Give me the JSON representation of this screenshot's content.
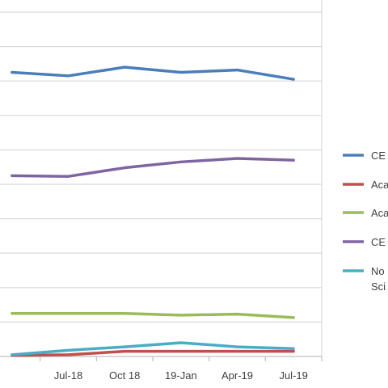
{
  "chart_data": {
    "type": "line",
    "title": "",
    "xlabel": "",
    "ylabel": "",
    "categories": [
      "",
      "Jul-18",
      "Oct 18",
      "19-Jan",
      "Apr-19",
      "Jul-19"
    ],
    "ylim": [
      0,
      100
    ],
    "grid": true,
    "legend_position": "right",
    "series": [
      {
        "name": "CE",
        "color": "#4a7ebb",
        "values": [
          82.5,
          81.5,
          84.0,
          82.5,
          83.2,
          80.5
        ]
      },
      {
        "name": "Aca",
        "color": "#c0504d",
        "values": [
          0.3,
          0.5,
          1.5,
          1.5,
          1.5,
          1.5
        ]
      },
      {
        "name": "Aca",
        "color": "#9bbb59",
        "values": [
          12.5,
          12.5,
          12.5,
          12.0,
          12.3,
          11.3
        ]
      },
      {
        "name": "CE",
        "color": "#8064a2",
        "values": [
          52.5,
          52.3,
          54.8,
          56.5,
          57.5,
          57.0
        ]
      },
      {
        "name": "No",
        "name_line2": "Sci",
        "color": "#4bacc6",
        "values": [
          0.5,
          1.8,
          2.8,
          4.0,
          2.8,
          2.3
        ]
      }
    ]
  }
}
